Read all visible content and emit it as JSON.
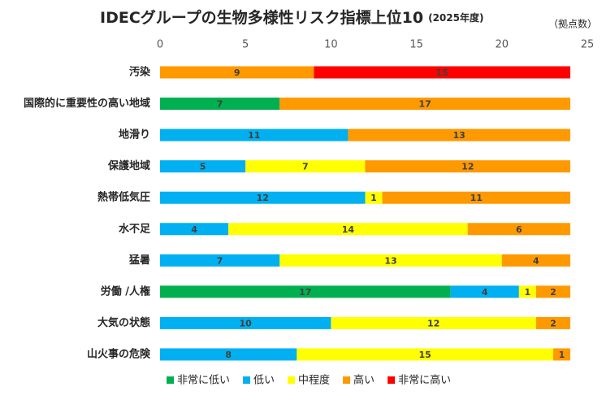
{
  "chart_data": {
    "type": "stacked-barh",
    "title": "IDECグループの生物多様性リスク指標上位10",
    "subtitle": "(2025年度)",
    "unit_label": "（拠点数）",
    "categories": [
      "汚染",
      "国際的に重要性の高い地域",
      "地滑り",
      "保護地域",
      "熱帯低気圧",
      "水不足",
      "猛暑",
      "労働 /人権",
      "大気の状態",
      "山火事の危険"
    ],
    "series": [
      {
        "name": "非常に低い",
        "color": "#00b050",
        "values": [
          null,
          7,
          null,
          null,
          null,
          null,
          null,
          17,
          null,
          null
        ]
      },
      {
        "name": "低い",
        "color": "#00b0f0",
        "values": [
          null,
          null,
          11,
          5,
          12,
          4,
          7,
          4,
          10,
          8
        ]
      },
      {
        "name": "中程度",
        "color": "#ffff00",
        "values": [
          null,
          null,
          null,
          7,
          1,
          14,
          13,
          1,
          12,
          15
        ]
      },
      {
        "name": "高い",
        "color": "#ff9900",
        "values": [
          9,
          17,
          13,
          12,
          11,
          6,
          4,
          2,
          2,
          1
        ]
      },
      {
        "name": "非常に高い",
        "color": "#ff0000",
        "values": [
          15,
          null,
          null,
          null,
          null,
          null,
          null,
          null,
          null,
          null
        ]
      }
    ],
    "xlim": [
      0,
      25
    ],
    "xticks": [
      0,
      5,
      10,
      15,
      20,
      25
    ],
    "grid": false,
    "legend": "bottom"
  }
}
